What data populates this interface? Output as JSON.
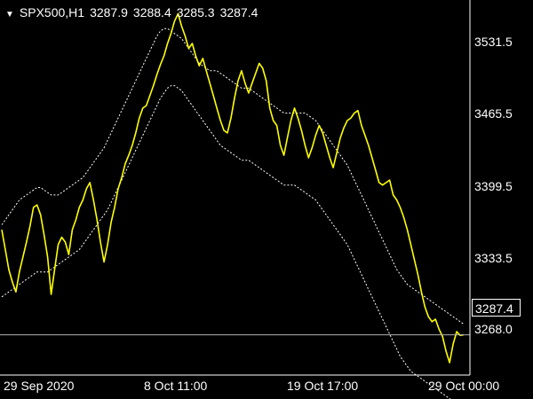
{
  "header": {
    "symbol": "SPX500,H1",
    "open": "3287.9",
    "high": "3288.4",
    "low": "3285.3",
    "close": "3287.4"
  },
  "colors": {
    "background": "#000000",
    "price_line": "#FFFF00",
    "envelope": "#FFFFFF",
    "axis": "#FFFFFF",
    "current_price_line": "#B0B0B0"
  },
  "chart_data": {
    "type": "line",
    "symbol": "SPX500",
    "timeframe": "H1",
    "title": "",
    "ylim": [
      3255,
      3557
    ],
    "y_ticks": [
      "3531.5",
      "3465.5",
      "3399.5",
      "3333.5",
      "3268.0"
    ],
    "x_ticks": [
      "29 Sep 2020",
      "8 Oct 11:00",
      "19 Oct 17:00",
      "29 Oct 00:00"
    ],
    "current_price": "3287.4",
    "x": [
      0,
      1,
      2,
      3,
      4,
      5,
      6,
      7,
      8,
      9,
      10,
      11,
      12,
      13,
      14,
      15,
      16,
      17,
      18,
      19,
      20,
      21,
      22,
      23,
      24,
      25,
      26,
      27,
      28,
      29,
      30,
      31,
      32,
      33,
      34,
      35,
      36,
      37,
      38,
      39,
      40,
      41,
      42,
      43,
      44,
      45,
      46,
      47,
      48,
      49,
      50,
      51,
      52,
      53,
      54,
      55,
      56,
      57,
      58,
      59,
      60,
      61,
      62,
      63,
      64,
      65,
      66,
      67,
      68,
      69,
      70,
      71,
      72,
      73,
      74,
      75,
      76,
      77,
      78,
      79,
      80,
      81,
      82,
      83,
      84,
      85,
      86,
      87,
      88,
      89,
      90,
      91,
      92,
      93,
      94,
      95,
      96,
      97,
      98,
      99,
      100,
      101,
      102,
      103,
      104,
      105,
      106,
      107,
      108,
      109,
      110,
      111,
      112,
      113,
      114,
      115,
      116,
      117,
      118,
      119,
      120,
      121,
      122,
      123,
      124,
      125,
      126,
      127,
      128,
      129,
      130,
      131
    ],
    "series": [
      {
        "values": [
          3372,
          3356,
          3340,
          3330,
          3322,
          3338,
          3350,
          3362,
          3375,
          3390,
          3392,
          3384,
          3368,
          3350,
          3320,
          3340,
          3360,
          3366,
          3362,
          3352,
          3372,
          3380,
          3390,
          3396,
          3405,
          3410,
          3396,
          3380,
          3362,
          3346,
          3360,
          3378,
          3390,
          3405,
          3414,
          3425,
          3432,
          3440,
          3450,
          3462,
          3470,
          3472,
          3480,
          3488,
          3497,
          3505,
          3512,
          3522,
          3530,
          3540,
          3546,
          3536,
          3528,
          3518,
          3522,
          3512,
          3504,
          3510,
          3500,
          3490,
          3480,
          3470,
          3460,
          3452,
          3450,
          3462,
          3478,
          3492,
          3500,
          3490,
          3482,
          3490,
          3498,
          3506,
          3502,
          3492,
          3470,
          3460,
          3456,
          3440,
          3432,
          3446,
          3460,
          3470,
          3462,
          3452,
          3440,
          3430,
          3438,
          3448,
          3456,
          3450,
          3440,
          3430,
          3422,
          3434,
          3446,
          3454,
          3460,
          3462,
          3466,
          3468,
          3456,
          3448,
          3440,
          3430,
          3420,
          3410,
          3408,
          3410,
          3412,
          3400,
          3396,
          3390,
          3382,
          3372,
          3360,
          3348,
          3336,
          3322,
          3310,
          3302,
          3298,
          3300,
          3292,
          3286,
          3274,
          3265,
          3280,
          3290,
          3287,
          3287.4
        ]
      },
      {
        "name": "upper",
        "values": [
          3376,
          3380,
          3384,
          3388,
          3392,
          3396,
          3398,
          3400,
          3402,
          3404,
          3406,
          3406,
          3404,
          3402,
          3400,
          3400,
          3400,
          3402,
          3404,
          3406,
          3408,
          3410,
          3412,
          3414,
          3418,
          3422,
          3426,
          3430,
          3434,
          3438,
          3444,
          3450,
          3456,
          3462,
          3468,
          3474,
          3480,
          3486,
          3492,
          3498,
          3504,
          3510,
          3516,
          3522,
          3528,
          3532,
          3534,
          3534,
          3532,
          3530,
          3528,
          3526,
          3522,
          3518,
          3514,
          3510,
          3506,
          3504,
          3502,
          3500,
          3500,
          3500,
          3498,
          3496,
          3494,
          3492,
          3490,
          3488,
          3486,
          3486,
          3486,
          3484,
          3482,
          3480,
          3478,
          3476,
          3474,
          3472,
          3470,
          3468,
          3466,
          3466,
          3466,
          3466,
          3466,
          3466,
          3466,
          3464,
          3462,
          3460,
          3456,
          3452,
          3448,
          3444,
          3440,
          3436,
          3432,
          3428,
          3424,
          3418,
          3412,
          3406,
          3400,
          3394,
          3388,
          3382,
          3376,
          3370,
          3364,
          3358,
          3352,
          3346,
          3340,
          3336,
          3332,
          3328,
          3326,
          3324,
          3322,
          3320,
          3318,
          3316,
          3314,
          3312,
          3310,
          3308,
          3306,
          3304,
          3302,
          3300,
          3298,
          3296
        ]
      },
      {
        "name": "lower",
        "values": [
          3318,
          3320,
          3322,
          3324,
          3326,
          3328,
          3330,
          3332,
          3334,
          3336,
          3338,
          3338,
          3338,
          3338,
          3340,
          3342,
          3344,
          3346,
          3348,
          3350,
          3352,
          3354,
          3356,
          3360,
          3364,
          3368,
          3372,
          3376,
          3380,
          3384,
          3388,
          3394,
          3400,
          3406,
          3412,
          3418,
          3424,
          3430,
          3436,
          3442,
          3448,
          3454,
          3460,
          3466,
          3472,
          3478,
          3482,
          3486,
          3488,
          3488,
          3486,
          3484,
          3480,
          3476,
          3472,
          3468,
          3464,
          3460,
          3456,
          3452,
          3448,
          3444,
          3440,
          3438,
          3436,
          3434,
          3432,
          3430,
          3428,
          3428,
          3428,
          3426,
          3424,
          3422,
          3420,
          3418,
          3416,
          3414,
          3412,
          3410,
          3408,
          3408,
          3408,
          3408,
          3406,
          3404,
          3402,
          3400,
          3398,
          3396,
          3392,
          3388,
          3384,
          3380,
          3376,
          3372,
          3368,
          3364,
          3360,
          3354,
          3348,
          3342,
          3336,
          3330,
          3324,
          3318,
          3312,
          3306,
          3300,
          3294,
          3288,
          3282,
          3276,
          3270,
          3266,
          3262,
          3258,
          3256,
          3254,
          3252,
          3250,
          3248,
          3246,
          3244,
          3242,
          3240,
          3238,
          3236,
          3234,
          3232,
          3230,
          3228
        ]
      }
    ]
  }
}
